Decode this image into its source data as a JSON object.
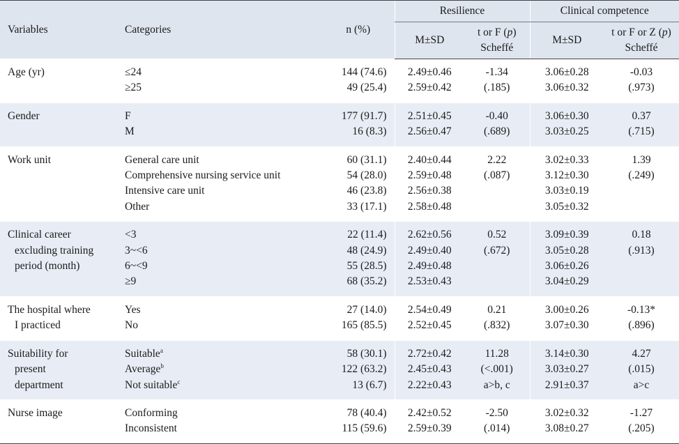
{
  "header": {
    "variables": "Variables",
    "categories": "Categories",
    "n_pct": "n (%)",
    "resilience": "Resilience",
    "clinical_competence": "Clinical competence",
    "msd": "M±SD",
    "res_stat_1": "t or F (",
    "res_stat_p": "p",
    "res_stat_2": ")",
    "res_scheffe": "Scheffé",
    "cc_stat_1": "t or F or Z (",
    "cc_stat_p": "p",
    "cc_stat_2": ")",
    "cc_scheffe": "Scheffé"
  },
  "groups": [
    {
      "variable": [
        "Age (yr)"
      ],
      "categories": [
        "≤24",
        "≥25"
      ],
      "n": [
        "144 (74.6)",
        "49 (25.4)"
      ],
      "res_msd": [
        "2.49±0.46",
        "2.59±0.42"
      ],
      "res_stat": [
        "-1.34",
        "(.185)"
      ],
      "cc_msd": [
        "3.06±0.28",
        "3.06±0.32"
      ],
      "cc_stat": [
        "-0.03",
        "(.973)"
      ]
    },
    {
      "variable": [
        "Gender"
      ],
      "categories": [
        "F",
        "M"
      ],
      "n": [
        "177 (91.7)",
        "16 (8.3)"
      ],
      "res_msd": [
        "2.51±0.45",
        "2.56±0.47"
      ],
      "res_stat": [
        "-0.40",
        "(.689)"
      ],
      "cc_msd": [
        "3.06±0.30",
        "3.03±0.25"
      ],
      "cc_stat": [
        "0.37",
        "(.715)"
      ]
    },
    {
      "variable": [
        "Work unit"
      ],
      "categories": [
        "General care unit",
        "Comprehensive nursing service unit",
        "Intensive care unit",
        "Other"
      ],
      "n": [
        "60 (31.1)",
        "54 (28.0)",
        "46 (23.8)",
        "33 (17.1)"
      ],
      "res_msd": [
        "2.40±0.44",
        "2.59±0.48",
        "2.56±0.38",
        "2.58±0.48"
      ],
      "res_stat": [
        "2.22",
        "(.087)"
      ],
      "cc_msd": [
        "3.02±0.33",
        "3.12±0.30",
        "3.03±0.19",
        "3.05±0.32"
      ],
      "cc_stat": [
        "1.39",
        "(.249)"
      ]
    },
    {
      "variable": [
        "Clinical career",
        "excluding training",
        "period (month)"
      ],
      "categories": [
        "<3",
        "3~<6",
        "6~<9",
        "≥9"
      ],
      "n": [
        "22 (11.4)",
        "48 (24.9)",
        "55 (28.5)",
        "68 (35.2)"
      ],
      "res_msd": [
        "2.62±0.56",
        "2.49±0.40",
        "2.49±0.48",
        "2.53±0.43"
      ],
      "res_stat": [
        "0.52",
        "(.672)"
      ],
      "cc_msd": [
        "3.09±0.39",
        "3.05±0.28",
        "3.06±0.26",
        "3.04±0.29"
      ],
      "cc_stat": [
        "0.18",
        "(.913)"
      ]
    },
    {
      "variable": [
        "The hospital where",
        "I practiced"
      ],
      "categories": [
        "Yes",
        "No"
      ],
      "n": [
        "27 (14.0)",
        "165 (85.5)"
      ],
      "res_msd": [
        "2.54±0.49",
        "2.52±0.45"
      ],
      "res_stat": [
        "0.21",
        "(.832)"
      ],
      "cc_msd": [
        "3.00±0.26",
        "3.07±0.30"
      ],
      "cc_stat": [
        "-0.13*",
        "(.896)"
      ]
    },
    {
      "variable": [
        "Suitability for",
        "present",
        "department"
      ],
      "categories": [
        "Suitable",
        "Average",
        "Not suitable"
      ],
      "cat_sup": [
        "a",
        "b",
        "c"
      ],
      "n": [
        "58 (30.1)",
        "122 (63.2)",
        "13 (6.7)"
      ],
      "res_msd": [
        "2.72±0.42",
        "2.45±0.43",
        "2.22±0.43"
      ],
      "res_stat": [
        "11.28",
        "(<.001)",
        "a>b, c"
      ],
      "cc_msd": [
        "3.14±0.30",
        "3.03±0.27",
        "2.91±0.37"
      ],
      "cc_stat": [
        "4.27",
        "(.015)",
        "a>c"
      ]
    },
    {
      "variable": [
        "Nurse image"
      ],
      "categories": [
        "Conforming",
        "Inconsistent"
      ],
      "n": [
        "78 (40.4)",
        "115 (59.6)"
      ],
      "res_msd": [
        "2.42±0.52",
        "2.59±0.39"
      ],
      "res_stat": [
        "-2.50",
        "(.014)"
      ],
      "cc_msd": [
        "3.02±0.32",
        "3.08±0.27"
      ],
      "cc_stat": [
        "-1.27",
        "(.205)"
      ]
    }
  ]
}
